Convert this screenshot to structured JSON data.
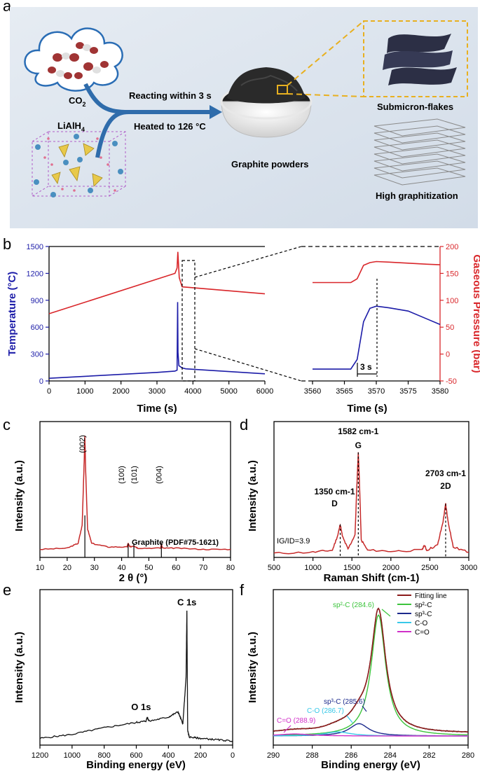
{
  "panels": {
    "a": "a",
    "b": "b",
    "c": "c",
    "d": "d",
    "e": "e",
    "f": "f"
  },
  "schematic": {
    "co2_label": "CO",
    "co2_sub": "2",
    "lialh4_label": "LiAlH",
    "lialh4_sub": "4",
    "arrow_top": "Reacting within 3 s",
    "arrow_bottom": "Heated to 126 °C",
    "powder_label": "Graphite powders",
    "flakes_label": "Submicron-flakes",
    "graphitization_label": "High  graphitization",
    "colors": {
      "background": "#dbe4ee",
      "arrow": "#2f6cab",
      "zoom_box": "#e8b020",
      "powder": "#2a2a2a"
    }
  },
  "chart_data": [
    {
      "id": "b-left",
      "type": "line",
      "xlabel": "Time (s)",
      "ylabel_left": "Temperature (°C)",
      "xlim": [
        0,
        6000
      ],
      "ylim": [
        0,
        1500
      ],
      "xticks": [
        "0",
        "1000",
        "2000",
        "3000",
        "4000",
        "5000",
        "6000"
      ],
      "yticks": [
        "0",
        "300",
        "600",
        "900",
        "1200",
        "1500"
      ],
      "series": [
        {
          "name": "Gaseous Pressure",
          "color": "#d9262a",
          "axis": "right",
          "x": [
            0,
            3500,
            3560,
            3580,
            3620,
            3700,
            6000
          ],
          "y": [
            75,
            150,
            160,
            190,
            142,
            125,
            112
          ]
        },
        {
          "name": "Temperature",
          "color": "#1c1ca8",
          "axis": "left",
          "x": [
            0,
            3000,
            3500,
            3560,
            3575,
            3585,
            3610,
            3700,
            3800,
            6000
          ],
          "y": [
            30,
            95,
            110,
            120,
            880,
            320,
            170,
            145,
            135,
            80
          ]
        }
      ]
    },
    {
      "id": "b-right",
      "type": "line",
      "xlabel": "Time (s)",
      "ylabel_right": "Gaseous Pressure (bar)",
      "xlim": [
        3560,
        3580
      ],
      "ylim": [
        -50,
        200
      ],
      "xticks": [
        "3560",
        "3565",
        "3570",
        "3575",
        "3580"
      ],
      "yticks": [
        "-50",
        "0",
        "50",
        "100",
        "150",
        "200"
      ],
      "annotation": "3 s",
      "series": [
        {
          "name": "Gaseous Pressure",
          "color": "#d9262a",
          "x": [
            3560,
            3566,
            3567,
            3568,
            3569,
            3570,
            3572,
            3575,
            3578,
            3580
          ],
          "y": [
            133,
            133,
            140,
            165,
            170,
            172,
            171,
            169,
            167,
            166
          ]
        },
        {
          "name": "Temperature",
          "color": "#1c1ca8",
          "x": [
            3560,
            3566,
            3567,
            3568,
            3569,
            3570,
            3572,
            3575,
            3578,
            3580
          ],
          "y": [
            -28,
            -28,
            -10,
            60,
            85,
            89,
            86,
            80,
            65,
            55
          ]
        }
      ]
    },
    {
      "id": "c",
      "type": "line",
      "xlabel": "2 θ (°)",
      "ylabel": "Intensity (a.u.)",
      "xlim": [
        10,
        80
      ],
      "xticks": [
        "10",
        "20",
        "30",
        "40",
        "50",
        "60",
        "70",
        "80"
      ],
      "peaks": [
        {
          "label": "(002)",
          "x": 26.5
        },
        {
          "label": "(100)",
          "x": 42.4
        },
        {
          "label": "(101)",
          "x": 44.5
        },
        {
          "label": "(004)",
          "x": 54.6
        }
      ],
      "reference": "Graphite (PDF#75-1621)",
      "series": [
        {
          "name": "XRD",
          "color": "#c62828",
          "x": [
            10,
            20,
            24,
            25.5,
            26.2,
            26.5,
            26.8,
            27.5,
            29,
            35,
            42,
            42.4,
            43,
            44.5,
            46,
            54.3,
            54.6,
            55,
            60,
            70,
            80
          ],
          "y": [
            0.05,
            0.06,
            0.1,
            0.25,
            0.75,
            1.0,
            0.7,
            0.22,
            0.1,
            0.07,
            0.07,
            0.1,
            0.07,
            0.08,
            0.06,
            0.06,
            0.09,
            0.06,
            0.06,
            0.05,
            0.05
          ]
        }
      ]
    },
    {
      "id": "d",
      "type": "line",
      "xlabel": "Raman Shift (cm-1)",
      "ylabel": "Intensity (a.u.)",
      "xlim": [
        500,
        3000
      ],
      "xticks": [
        "500",
        "1000",
        "1500",
        "2000",
        "2500",
        "3000"
      ],
      "peaks": [
        {
          "label": "1350 cm-1",
          "sub": "D",
          "x": 1350
        },
        {
          "label": "1582 cm-1",
          "sub": "G",
          "x": 1582
        },
        {
          "label": "2703 cm-1",
          "sub": "2D",
          "x": 2703
        }
      ],
      "ratio_label": "IG/ID=3.9",
      "series": [
        {
          "name": "Raman",
          "color": "#c62828",
          "x": [
            500,
            1000,
            1250,
            1320,
            1350,
            1380,
            1450,
            1540,
            1570,
            1582,
            1595,
            1620,
            1700,
            2000,
            2400,
            2430,
            2460,
            2600,
            2670,
            2703,
            2730,
            2800,
            3000
          ],
          "y": [
            0.02,
            0.03,
            0.05,
            0.2,
            0.3,
            0.18,
            0.06,
            0.2,
            0.8,
            1.0,
            0.75,
            0.15,
            0.05,
            0.04,
            0.05,
            0.1,
            0.05,
            0.1,
            0.33,
            0.5,
            0.35,
            0.08,
            0.03
          ]
        }
      ]
    },
    {
      "id": "e",
      "type": "line",
      "xlabel": "Binding energy (eV)",
      "ylabel": "Intensity (a.u.)",
      "xlim": [
        1200,
        0
      ],
      "xticks": [
        "1200",
        "1000",
        "800",
        "600",
        "400",
        "200",
        "0"
      ],
      "peaks": [
        {
          "label": "C 1s",
          "x": 285
        },
        {
          "label": "O 1s",
          "x": 532
        }
      ],
      "series": [
        {
          "name": "XPS survey",
          "color": "#111111",
          "x": [
            1200,
            1000,
            800,
            600,
            540,
            532,
            520,
            400,
            340,
            310,
            290,
            285,
            280,
            270,
            200,
            100,
            0
          ],
          "y": [
            0.04,
            0.07,
            0.12,
            0.16,
            0.17,
            0.2,
            0.17,
            0.2,
            0.24,
            0.15,
            0.5,
            1.0,
            0.1,
            0.05,
            0.04,
            0.03,
            0.02
          ]
        }
      ]
    },
    {
      "id": "f",
      "type": "line",
      "xlabel": "Binding energy (eV)",
      "ylabel": "Intensity (a.u.)",
      "xlim": [
        290,
        280
      ],
      "xticks": [
        "290",
        "288",
        "286",
        "284",
        "282",
        "280"
      ],
      "legend": [
        {
          "label": "Fitting line",
          "color": "#8b1a1a"
        },
        {
          "label": "sp²-C",
          "color": "#3cc43c"
        },
        {
          "label": "sp³-C",
          "color": "#1c2a8c"
        },
        {
          "label": "C-O",
          "color": "#38c8e8"
        },
        {
          "label": "C=O",
          "color": "#d030c8"
        }
      ],
      "annotations": [
        {
          "label": "sp²-C (284.6)",
          "color": "#3cc43c"
        },
        {
          "label": "sp³-C (285.6)",
          "color": "#1c2a8c"
        },
        {
          "label": "C-O (286.7)",
          "color": "#38c8e8"
        },
        {
          "label": "C=O (288.9)",
          "color": "#d030c8"
        }
      ],
      "components": [
        {
          "name": "sp2",
          "center": 284.6,
          "height": 0.88,
          "width": 0.45,
          "color": "#3cc43c"
        },
        {
          "name": "sp3",
          "center": 285.6,
          "height": 0.09,
          "width": 0.6,
          "color": "#1c2a8c"
        },
        {
          "name": "CO",
          "center": 286.7,
          "height": 0.03,
          "width": 0.8,
          "color": "#38c8e8"
        },
        {
          "name": "C=O",
          "center": 288.9,
          "height": 0.015,
          "width": 1.0,
          "color": "#d030c8"
        }
      ]
    }
  ]
}
